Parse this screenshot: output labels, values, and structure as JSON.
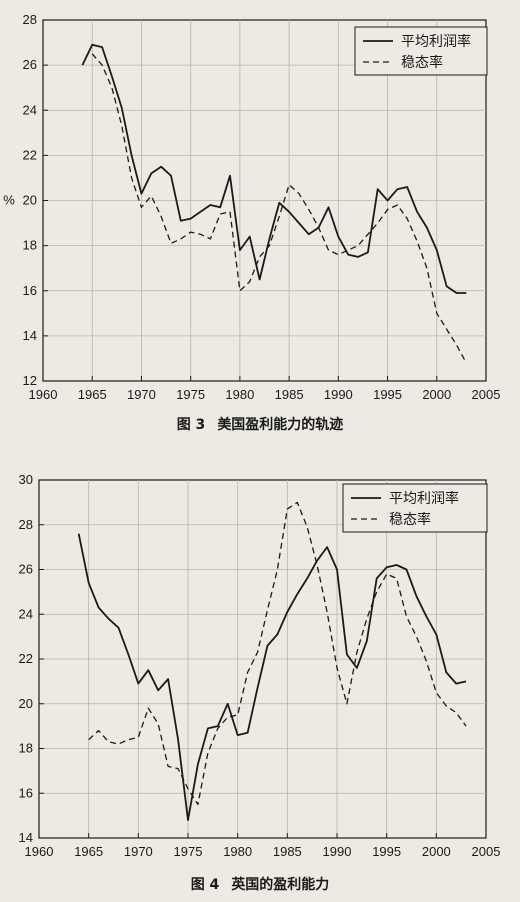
{
  "figures": [
    {
      "caption_num": "图 3",
      "caption_text": "美国盈利能力的轨迹"
    },
    {
      "caption_num": "图 4",
      "caption_text": "英国的盈利能力"
    }
  ],
  "colors": {
    "line": "#1a1a1a",
    "grid": "#b8b5ab",
    "background": "#eceae3"
  },
  "chart_data": [
    {
      "type": "line",
      "ylabel": "%",
      "xlim": [
        1960,
        2005
      ],
      "ylim": [
        12,
        28
      ],
      "x_ticks": [
        1960,
        1965,
        1970,
        1975,
        1980,
        1985,
        1990,
        1995,
        2000,
        2005
      ],
      "y_ticks": [
        12,
        14,
        16,
        18,
        20,
        22,
        24,
        26,
        28
      ],
      "grid": true,
      "legend_position": "top-right",
      "series": [
        {
          "name": "平均利润率",
          "style": "solid",
          "x": [
            1964,
            1965,
            1966,
            1967,
            1968,
            1969,
            1970,
            1971,
            1972,
            1973,
            1974,
            1975,
            1976,
            1977,
            1978,
            1979,
            1980,
            1981,
            1982,
            1983,
            1984,
            1985,
            1986,
            1987,
            1988,
            1989,
            1990,
            1991,
            1992,
            1993,
            1994,
            1995,
            1996,
            1997,
            1998,
            1999,
            2000,
            2001,
            2002,
            2003
          ],
          "y": [
            26.0,
            26.9,
            26.8,
            25.5,
            24.1,
            22.0,
            20.3,
            21.2,
            21.5,
            21.1,
            19.1,
            19.2,
            19.5,
            19.8,
            19.7,
            21.1,
            17.8,
            18.4,
            16.5,
            18.3,
            19.9,
            19.5,
            19.0,
            18.5,
            18.8,
            19.7,
            18.4,
            17.6,
            17.5,
            17.7,
            20.5,
            20.0,
            20.5,
            20.6,
            19.5,
            18.8,
            17.8,
            16.2,
            15.9,
            15.9
          ]
        },
        {
          "name": "稳态率",
          "style": "dashed",
          "x": [
            1965,
            1966,
            1967,
            1968,
            1969,
            1970,
            1971,
            1972,
            1973,
            1974,
            1975,
            1976,
            1977,
            1978,
            1979,
            1980,
            1981,
            1982,
            1983,
            1984,
            1985,
            1986,
            1987,
            1988,
            1989,
            1990,
            1991,
            1992,
            1993,
            1994,
            1995,
            1996,
            1997,
            1998,
            1999,
            2000,
            2001,
            2002,
            2003
          ],
          "y": [
            26.5,
            26.0,
            25.0,
            23.3,
            21.0,
            19.7,
            20.2,
            19.3,
            18.1,
            18.3,
            18.6,
            18.5,
            18.3,
            19.4,
            19.5,
            16.0,
            16.4,
            17.5,
            18.0,
            19.3,
            20.7,
            20.3,
            19.6,
            18.8,
            17.8,
            17.6,
            17.8,
            18.0,
            18.5,
            19.0,
            19.6,
            19.8,
            19.2,
            18.2,
            17.0,
            15.0,
            14.3,
            13.6,
            12.8
          ]
        }
      ]
    },
    {
      "type": "line",
      "ylabel": "",
      "xlim": [
        1960,
        2005
      ],
      "ylim": [
        14,
        30
      ],
      "x_ticks": [
        1960,
        1965,
        1970,
        1975,
        1980,
        1985,
        1990,
        1995,
        2000,
        2005
      ],
      "y_ticks": [
        14,
        16,
        18,
        20,
        22,
        24,
        26,
        28,
        30
      ],
      "grid": true,
      "legend_position": "top-right",
      "series": [
        {
          "name": "平均利润率",
          "style": "solid",
          "x": [
            1964,
            1965,
            1966,
            1967,
            1968,
            1969,
            1970,
            1971,
            1972,
            1973,
            1974,
            1975,
            1976,
            1977,
            1978,
            1979,
            1980,
            1981,
            1982,
            1983,
            1984,
            1985,
            1986,
            1987,
            1988,
            1989,
            1990,
            1991,
            1992,
            1993,
            1994,
            1995,
            1996,
            1997,
            1998,
            1999,
            2000,
            2001,
            2002,
            2003
          ],
          "y": [
            27.6,
            25.4,
            24.3,
            23.8,
            23.4,
            22.2,
            20.9,
            21.5,
            20.6,
            21.1,
            18.4,
            14.8,
            17.3,
            18.9,
            19.0,
            20.0,
            18.6,
            18.7,
            20.7,
            22.6,
            23.1,
            24.1,
            24.9,
            25.6,
            26.4,
            27.0,
            26.0,
            22.2,
            21.6,
            22.8,
            25.6,
            26.1,
            26.2,
            26.0,
            24.8,
            23.9,
            23.1,
            21.4,
            20.9,
            21.0
          ]
        },
        {
          "name": "稳态率",
          "style": "dashed",
          "x": [
            1965,
            1966,
            1967,
            1968,
            1969,
            1970,
            1971,
            1972,
            1973,
            1974,
            1975,
            1976,
            1977,
            1978,
            1979,
            1980,
            1981,
            1982,
            1983,
            1984,
            1985,
            1986,
            1987,
            1988,
            1989,
            1990,
            1991,
            1992,
            1993,
            1994,
            1995,
            1996,
            1997,
            1998,
            1999,
            2000,
            2001,
            2002,
            2003
          ],
          "y": [
            18.4,
            18.8,
            18.3,
            18.2,
            18.4,
            18.5,
            19.8,
            19.1,
            17.2,
            17.1,
            16.2,
            15.5,
            17.8,
            18.9,
            19.4,
            19.5,
            21.4,
            22.3,
            24.2,
            26.0,
            28.7,
            29.0,
            27.9,
            26.2,
            24.1,
            21.6,
            20.0,
            22.3,
            23.8,
            25.0,
            25.8,
            25.6,
            23.9,
            23.0,
            21.9,
            20.5,
            19.9,
            19.6,
            19.0
          ]
        }
      ]
    }
  ]
}
